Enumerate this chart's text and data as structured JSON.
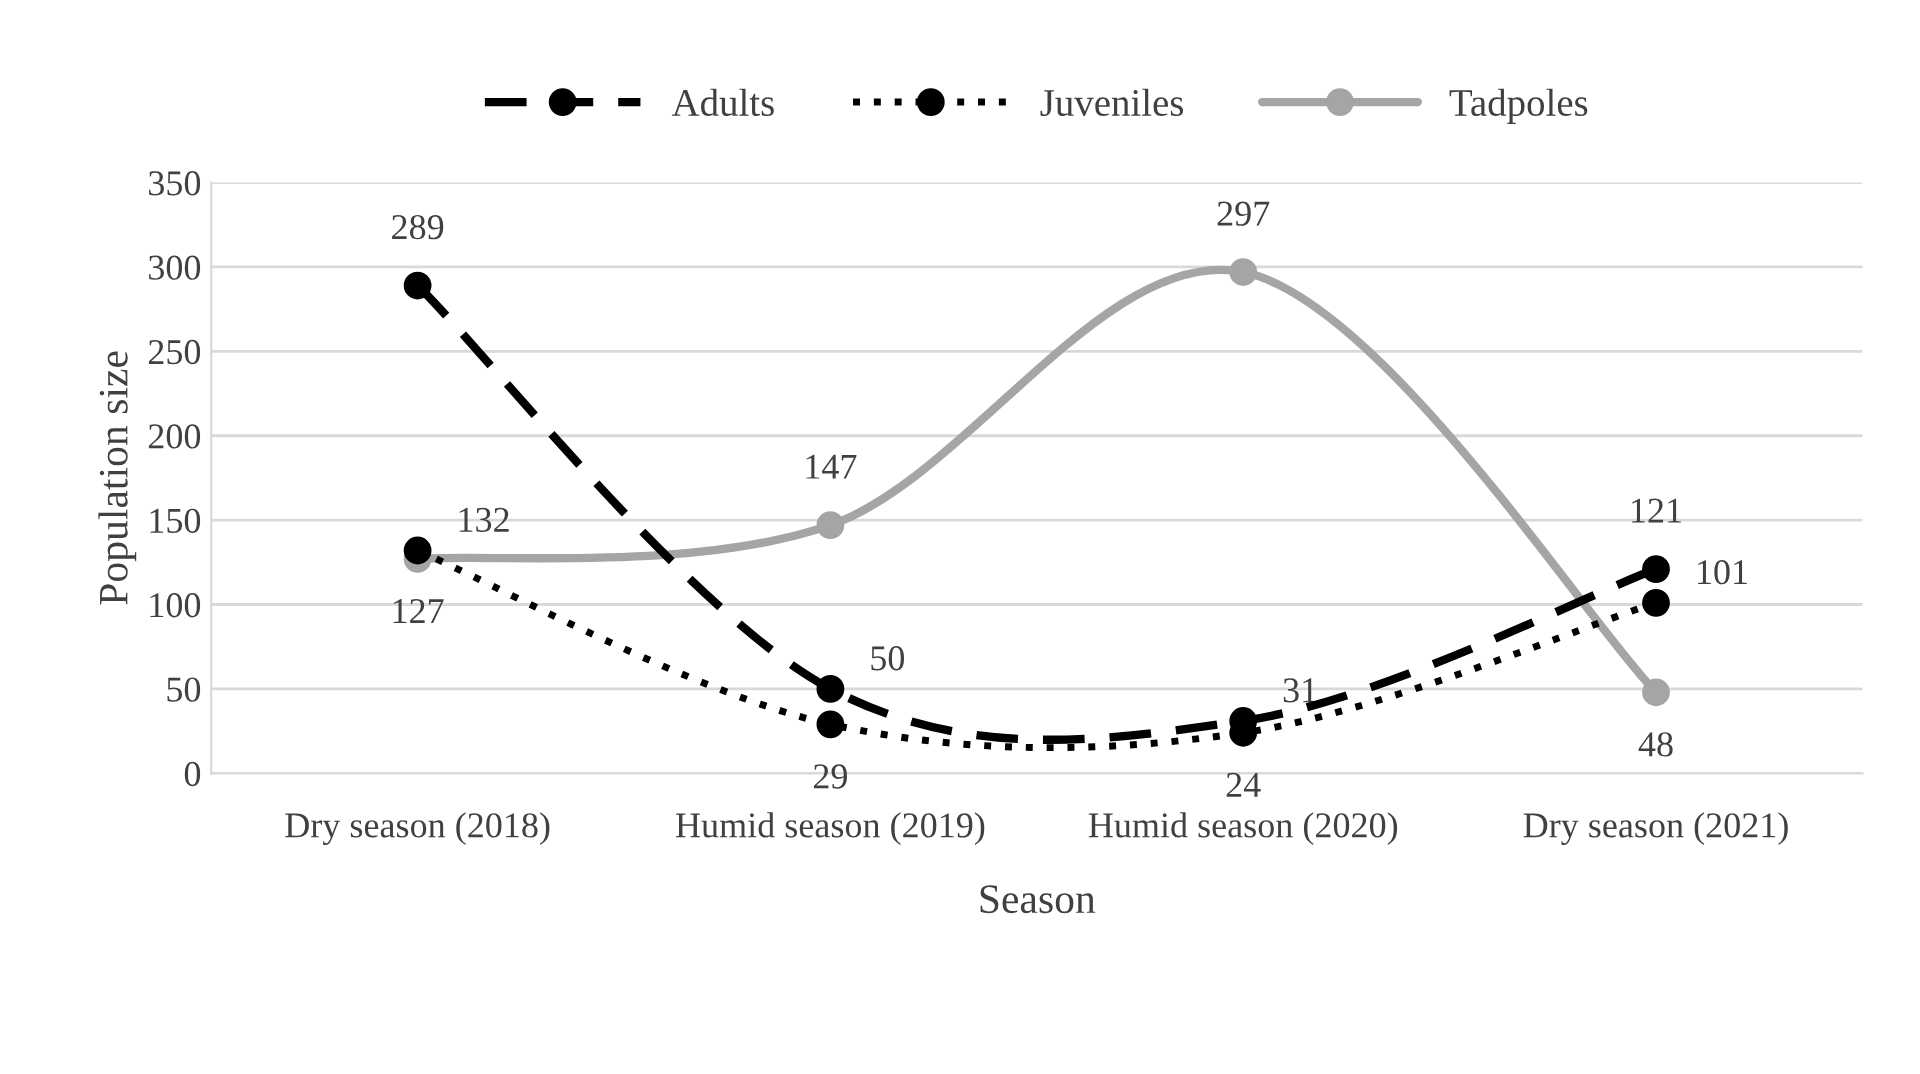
{
  "chart_data": {
    "type": "line",
    "xlabel": "Season",
    "ylabel": "Population size",
    "categories": [
      "Dry season (2018)",
      "Humid season (2019)",
      "Humid season (2020)",
      "Dry season (2021)"
    ],
    "series": [
      {
        "name": "Adults",
        "color": "#000000",
        "values": [
          289,
          50,
          31,
          121
        ],
        "line_style": "dashed"
      },
      {
        "name": "Juveniles",
        "color": "#000000",
        "values": [
          132,
          29,
          24,
          101
        ],
        "line_style": "dotted"
      },
      {
        "name": "Tadpoles",
        "color": "#a5a5a5",
        "values": [
          127,
          147,
          297,
          48
        ],
        "line_style": "solid"
      }
    ],
    "ylim": [
      0,
      350
    ],
    "yticks": [
      0,
      50,
      100,
      150,
      200,
      250,
      300,
      350
    ],
    "grid": "y",
    "legend": "top",
    "marker": "circle",
    "data_labels": true
  }
}
